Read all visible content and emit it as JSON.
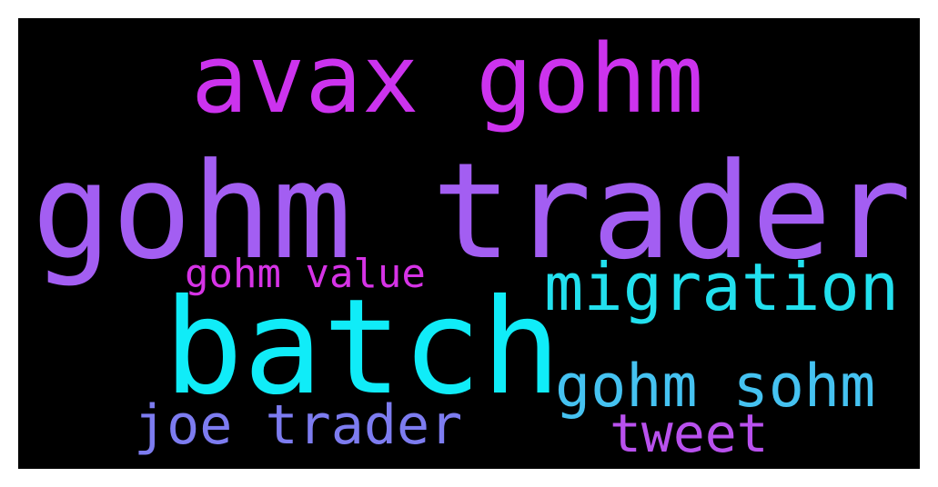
{
  "wordcloud": {
    "background": "#000000",
    "words": [
      {
        "text": "avax gohm",
        "color": "#cc33ee"
      },
      {
        "text": "gohm trader",
        "color": "#a35ef2"
      },
      {
        "text": "gohm value",
        "color": "#d633e6"
      },
      {
        "text": "migration",
        "color": "#22e0ee"
      },
      {
        "text": "batch",
        "color": "#10ecf8"
      },
      {
        "text": "gohm sohm",
        "color": "#45c2f1"
      },
      {
        "text": "joe trader",
        "color": "#7d7cf0"
      },
      {
        "text": "tweet",
        "color": "#b951ee"
      }
    ]
  }
}
